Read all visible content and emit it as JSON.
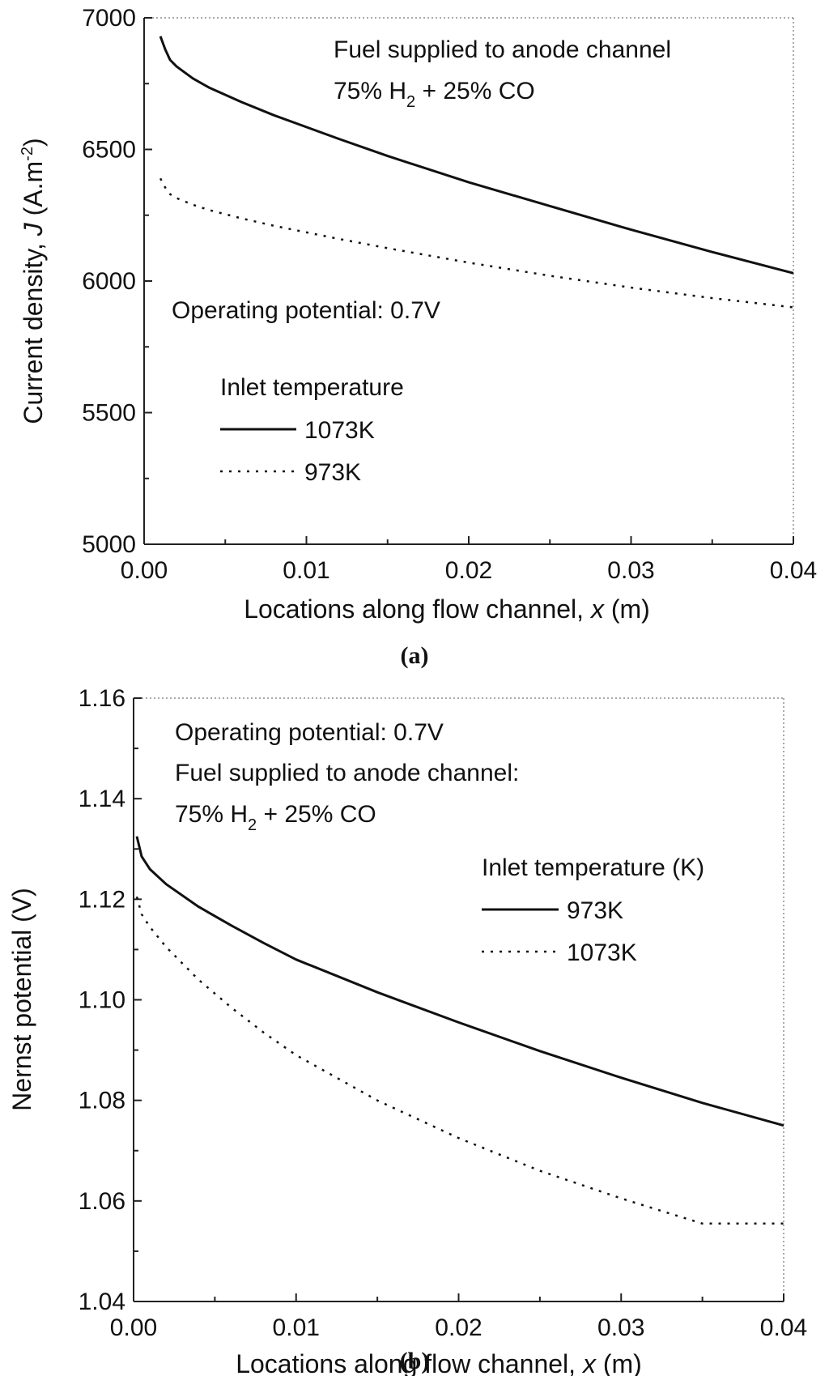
{
  "chart_data": [
    {
      "type": "line",
      "panel_label": "(a)",
      "title": "",
      "xlabel": "Locations along flow channel,",
      "xlabel_var": "x",
      "xlabel_unit": "(m)",
      "ylabel": "Current density,",
      "ylabel_var": "J",
      "ylabel_unit": "(A.m",
      "ylabel_unit_sup": "-2",
      "ylabel_unit_close": ")",
      "xlim": [
        0,
        0.04
      ],
      "ylim": [
        5000,
        7000
      ],
      "xticks": [
        0.0,
        0.01,
        0.02,
        0.03,
        0.04
      ],
      "xtick_labels": [
        "0.00",
        "0.01",
        "0.02",
        "0.03",
        "0.04"
      ],
      "yticks": [
        5000,
        5500,
        6000,
        6500,
        7000
      ],
      "ytick_labels": [
        "5000",
        "5500",
        "6000",
        "6500",
        "7000"
      ],
      "annotations": {
        "fuel_line1": "Fuel supplied to anode channel",
        "fuel_line2_a": "75% H",
        "fuel_line2_sub": "2",
        "fuel_line2_b": " + 25% CO",
        "operating": "Operating potential: 0.7V"
      },
      "legend_title": "Inlet temperature",
      "series": [
        {
          "name": "1073K",
          "style": "solid",
          "x": [
            0.001,
            0.0013,
            0.0016,
            0.002,
            0.003,
            0.004,
            0.006,
            0.008,
            0.01,
            0.012,
            0.015,
            0.02,
            0.025,
            0.03,
            0.035,
            0.04
          ],
          "y": [
            6930,
            6880,
            6840,
            6815,
            6770,
            6735,
            6680,
            6630,
            6585,
            6540,
            6475,
            6375,
            6285,
            6195,
            6110,
            6030
          ]
        },
        {
          "name": "973K",
          "style": "dotted",
          "x": [
            0.001,
            0.0013,
            0.0016,
            0.002,
            0.003,
            0.004,
            0.006,
            0.008,
            0.01,
            0.012,
            0.015,
            0.02,
            0.025,
            0.03,
            0.035,
            0.04
          ],
          "y": [
            6390,
            6355,
            6330,
            6315,
            6290,
            6270,
            6238,
            6210,
            6185,
            6160,
            6125,
            6070,
            6020,
            5975,
            5935,
            5900
          ]
        }
      ]
    },
    {
      "type": "line",
      "panel_label": "(b)",
      "title": "",
      "xlabel": "Locations along flow channel,",
      "xlabel_var": "x",
      "xlabel_unit": "(m)",
      "ylabel": "Nernst potential (V)",
      "xlim": [
        0,
        0.04
      ],
      "ylim": [
        1.04,
        1.16
      ],
      "xticks": [
        0.0,
        0.01,
        0.02,
        0.03,
        0.04
      ],
      "xtick_labels": [
        "0.00",
        "0.01",
        "0.02",
        "0.03",
        "0.04"
      ],
      "yticks": [
        1.04,
        1.06,
        1.08,
        1.1,
        1.12,
        1.14,
        1.16
      ],
      "ytick_labels": [
        "1.04",
        "1.06",
        "1.08",
        "1.10",
        "1.12",
        "1.14",
        "1.16"
      ],
      "annotations": {
        "operating": "Operating potential: 0.7V",
        "fuel_line1": "Fuel supplied to anode channel:",
        "fuel_line2_a": "75% H",
        "fuel_line2_sub": "2",
        "fuel_line2_b": " + 25% CO"
      },
      "legend_title": "Inlet temperature (K)",
      "series": [
        {
          "name": "973K",
          "style": "solid",
          "x": [
            0.0002,
            0.0005,
            0.001,
            0.002,
            0.004,
            0.006,
            0.008,
            0.01,
            0.015,
            0.02,
            0.025,
            0.03,
            0.035,
            0.04
          ],
          "y": [
            1.1325,
            1.1285,
            1.126,
            1.123,
            1.1185,
            1.1148,
            1.1113,
            1.108,
            1.1015,
            1.0955,
            1.0898,
            1.0845,
            1.0795,
            1.075
          ]
        },
        {
          "name": "1073K",
          "style": "dotted",
          "x": [
            0.0002,
            0.0005,
            0.001,
            0.002,
            0.004,
            0.006,
            0.008,
            0.01,
            0.015,
            0.02,
            0.025,
            0.03,
            0.035,
            0.04
          ],
          "y": [
            1.1205,
            1.117,
            1.1145,
            1.1105,
            1.104,
            1.0985,
            1.0935,
            1.089,
            1.08,
            1.0725,
            1.066,
            1.0605,
            1.0555,
            1.0555
          ]
        }
      ]
    }
  ]
}
